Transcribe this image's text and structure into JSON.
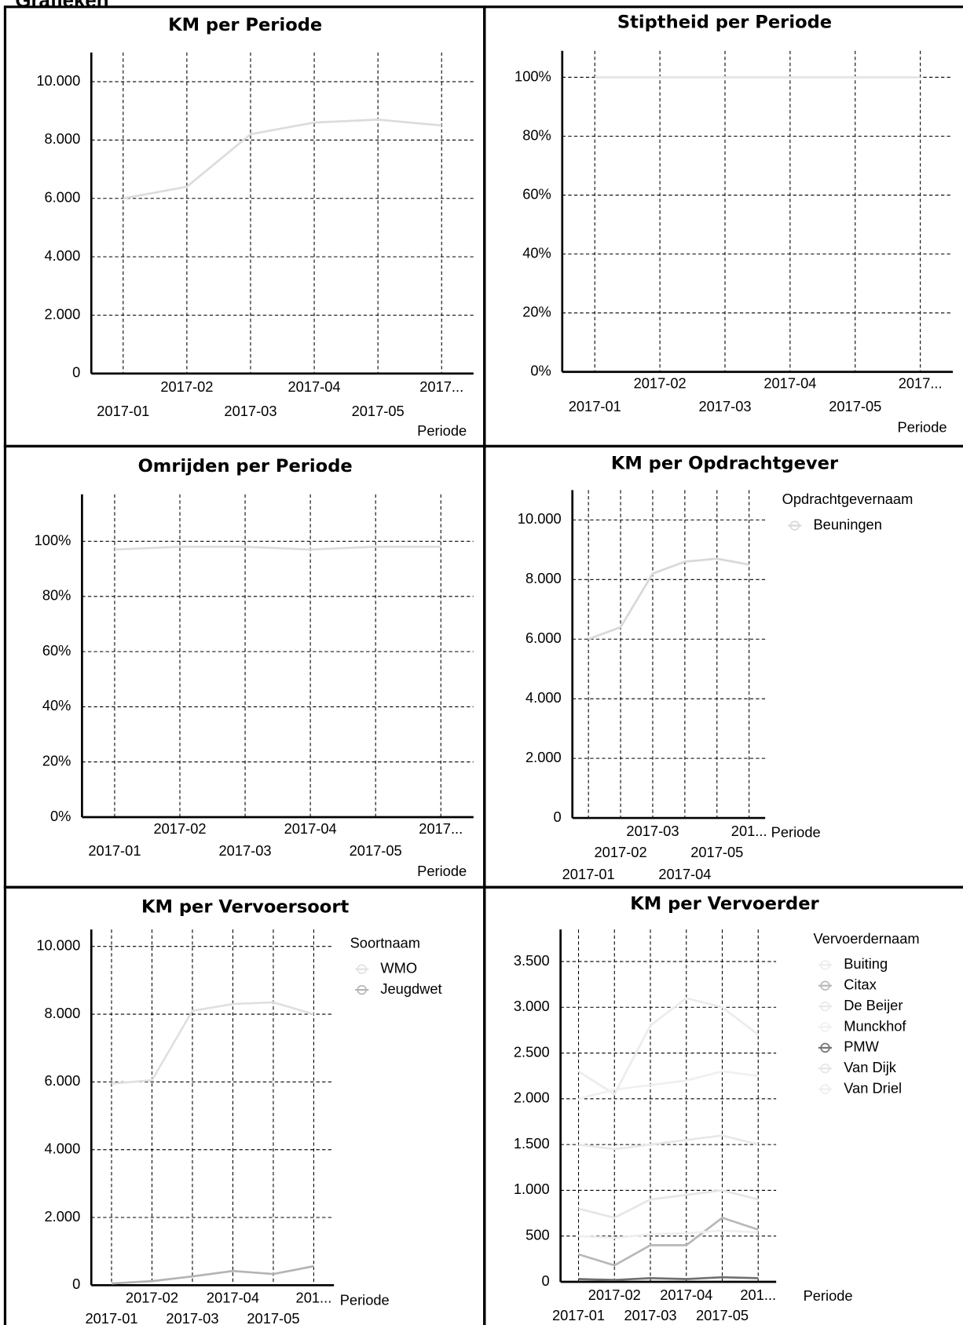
{
  "title": "Grafieken",
  "chart_data": [
    {
      "type": "line",
      "title": "KM per Periode",
      "x_label": "Periode",
      "categories": [
        "2017-01",
        "2017-02",
        "2017-03",
        "2017-04",
        "2017-05",
        "2017..."
      ],
      "values": [
        6000,
        6400,
        8200,
        8600,
        8700,
        8500
      ],
      "color": "#dcdcdc",
      "ylim": [
        0,
        11000
      ],
      "yticks": [
        0,
        {
          "value": 2000,
          "label": "2.000"
        },
        {
          "value": 4000,
          "label": "4.000"
        },
        {
          "value": 6000,
          "label": "6.000"
        },
        {
          "value": 8000,
          "label": "8.000"
        },
        {
          "value": 10000,
          "label": "10.000"
        }
      ],
      "grid": true
    },
    {
      "type": "line",
      "title": "Stiptheid per Periode",
      "x_label": "Periode",
      "categories": [
        "2017-01",
        "2017-02",
        "2017-03",
        "2017-04",
        "2017-05",
        "2017..."
      ],
      "values": [
        100,
        100,
        100,
        100,
        100,
        100
      ],
      "color": "#e4e4e4",
      "ylim": [
        0,
        109
      ],
      "yticks": [
        {
          "value": 0,
          "label": "0%"
        },
        {
          "value": 20,
          "label": "20%"
        },
        {
          "value": 40,
          "label": "40%"
        },
        {
          "value": 60,
          "label": "60%"
        },
        {
          "value": 80,
          "label": "80%"
        },
        {
          "value": 100,
          "label": "100%"
        }
      ],
      "grid": true
    },
    {
      "type": "line",
      "title": "Omrijden per Periode",
      "x_label": "Periode",
      "categories": [
        "2017-01",
        "2017-02",
        "2017-03",
        "2017-04",
        "2017-05",
        "2017..."
      ],
      "values": [
        97,
        98,
        98,
        97,
        98,
        98
      ],
      "color": "#dcdcdc",
      "ylim": [
        0,
        117
      ],
      "yticks": [
        {
          "value": 0,
          "label": "0%"
        },
        {
          "value": 20,
          "label": "20%"
        },
        {
          "value": 40,
          "label": "40%"
        },
        {
          "value": 60,
          "label": "60%"
        },
        {
          "value": 80,
          "label": "80%"
        },
        {
          "value": 100,
          "label": "100%"
        }
      ],
      "grid": true
    },
    {
      "type": "line",
      "title": "KM per Opdrachtgever",
      "x_label": "Periode",
      "legend_title": "Opdrachtgevernaam",
      "categories": [
        "2017-01",
        "2017-02",
        "2017-03",
        "2017-04",
        "2017-05",
        "201..."
      ],
      "series": [
        {
          "name": "Beuningen",
          "color": "#d8d8d8",
          "values": [
            6000,
            6400,
            8200,
            8600,
            8700,
            8500
          ]
        }
      ],
      "ylim": [
        0,
        11000
      ],
      "yticks": [
        0,
        {
          "value": 2000,
          "label": "2.000"
        },
        {
          "value": 4000,
          "label": "4.000"
        },
        {
          "value": 6000,
          "label": "6.000"
        },
        {
          "value": 8000,
          "label": "8.000"
        },
        {
          "value": 10000,
          "label": "10.000"
        }
      ],
      "grid": true
    },
    {
      "type": "line",
      "title": "KM per Vervoersoort",
      "x_label": "Periode",
      "legend_title": "Soortnaam",
      "categories": [
        "2017-01",
        "2017-02",
        "2017-03",
        "2017-04",
        "2017-05",
        "201..."
      ],
      "series": [
        {
          "name": "WMO",
          "color": "#e0e0e0",
          "values": [
            5950,
            6050,
            8100,
            8300,
            8350,
            8000
          ]
        },
        {
          "name": "Jeugdwet",
          "color": "#b4b4b4",
          "values": [
            50,
            120,
            260,
            420,
            330,
            560
          ]
        }
      ],
      "ylim": [
        0,
        10500
      ],
      "yticks": [
        0,
        {
          "value": 2000,
          "label": "2.000"
        },
        {
          "value": 4000,
          "label": "4.000"
        },
        {
          "value": 6000,
          "label": "6.000"
        },
        {
          "value": 8000,
          "label": "8.000"
        },
        {
          "value": 10000,
          "label": "10.000"
        }
      ],
      "grid": true
    },
    {
      "type": "line",
      "title": "KM per Vervoerder",
      "x_label": "Periode",
      "legend_title": "Vervoerdernaam",
      "categories": [
        "2017-01",
        "2017-02",
        "2017-03",
        "2017-04",
        "2017-05",
        "201..."
      ],
      "series": [
        {
          "name": "Buiting",
          "color": "#ececec",
          "values": [
            2300,
            2050,
            2800,
            3100,
            3000,
            2700
          ]
        },
        {
          "name": "Citax",
          "color": "#b8b8b8",
          "values": [
            300,
            180,
            400,
            400,
            700,
            570
          ]
        },
        {
          "name": "De Beijer",
          "color": "#e8e8e8",
          "values": [
            1500,
            1450,
            1500,
            1550,
            1600,
            1500
          ]
        },
        {
          "name": "Munckhof",
          "color": "#f0f0f0",
          "values": [
            2000,
            2100,
            2150,
            2200,
            2300,
            2250
          ]
        },
        {
          "name": "PMW",
          "color": "#707070",
          "values": [
            30,
            20,
            40,
            30,
            50,
            40
          ]
        },
        {
          "name": "Van Dijk",
          "color": "#e6e6e6",
          "values": [
            800,
            700,
            900,
            950,
            1000,
            900
          ]
        },
        {
          "name": "Van Driel",
          "color": "#eeeeee",
          "values": [
            500,
            480,
            520,
            530,
            560,
            540
          ]
        }
      ],
      "ylim": [
        0,
        3850
      ],
      "yticks": [
        0,
        500,
        {
          "value": 1000,
          "label": "1.000"
        },
        {
          "value": 1500,
          "label": "1.500"
        },
        {
          "value": 2000,
          "label": "2.000"
        },
        {
          "value": 2500,
          "label": "2.500"
        },
        {
          "value": 3000,
          "label": "3.000"
        },
        {
          "value": 3500,
          "label": "3.500"
        }
      ],
      "grid": true
    }
  ]
}
